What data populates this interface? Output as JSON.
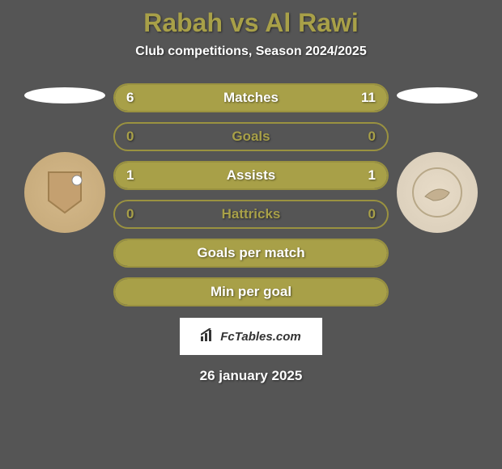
{
  "title": "Rabah vs Al Rawi",
  "subtitle": "Club competitions, Season 2024/2025",
  "date": "26 january 2025",
  "brand": "FcTables.com",
  "colors": {
    "background": "#555555",
    "accent": "#a8a048",
    "border": "#9a9240",
    "text_white": "#ffffff",
    "text_accent": "#a8a048"
  },
  "stats": [
    {
      "label": "Matches",
      "left_value": "6",
      "right_value": "11",
      "left_fill_pct": 35,
      "right_fill_pct": 65,
      "fill_color": "#a8a048",
      "border_color": "#9a9240",
      "has_fill": true,
      "text_color": "#ffffff",
      "label_color": "#ffffff"
    },
    {
      "label": "Goals",
      "left_value": "0",
      "right_value": "0",
      "left_fill_pct": 0,
      "right_fill_pct": 0,
      "fill_color": "#a8a048",
      "border_color": "#9a9240",
      "has_fill": false,
      "text_color": "#a8a048",
      "label_color": "#a8a048"
    },
    {
      "label": "Assists",
      "left_value": "1",
      "right_value": "1",
      "left_fill_pct": 50,
      "right_fill_pct": 50,
      "fill_color": "#a8a048",
      "border_color": "#9a9240",
      "has_fill": true,
      "text_color": "#ffffff",
      "label_color": "#ffffff"
    },
    {
      "label": "Hattricks",
      "left_value": "0",
      "right_value": "0",
      "left_fill_pct": 0,
      "right_fill_pct": 0,
      "fill_color": "#a8a048",
      "border_color": "#9a9240",
      "has_fill": false,
      "text_color": "#a8a048",
      "label_color": "#a8a048"
    },
    {
      "label": "Goals per match",
      "left_value": "",
      "right_value": "",
      "left_fill_pct": 100,
      "right_fill_pct": 0,
      "fill_color": "#a8a048",
      "border_color": "#9a9240",
      "has_fill": true,
      "text_color": "#ffffff",
      "label_color": "#ffffff"
    },
    {
      "label": "Min per goal",
      "left_value": "",
      "right_value": "",
      "left_fill_pct": 100,
      "right_fill_pct": 0,
      "fill_color": "#a8a048",
      "border_color": "#9a9240",
      "has_fill": true,
      "text_color": "#ffffff",
      "label_color": "#ffffff"
    }
  ]
}
